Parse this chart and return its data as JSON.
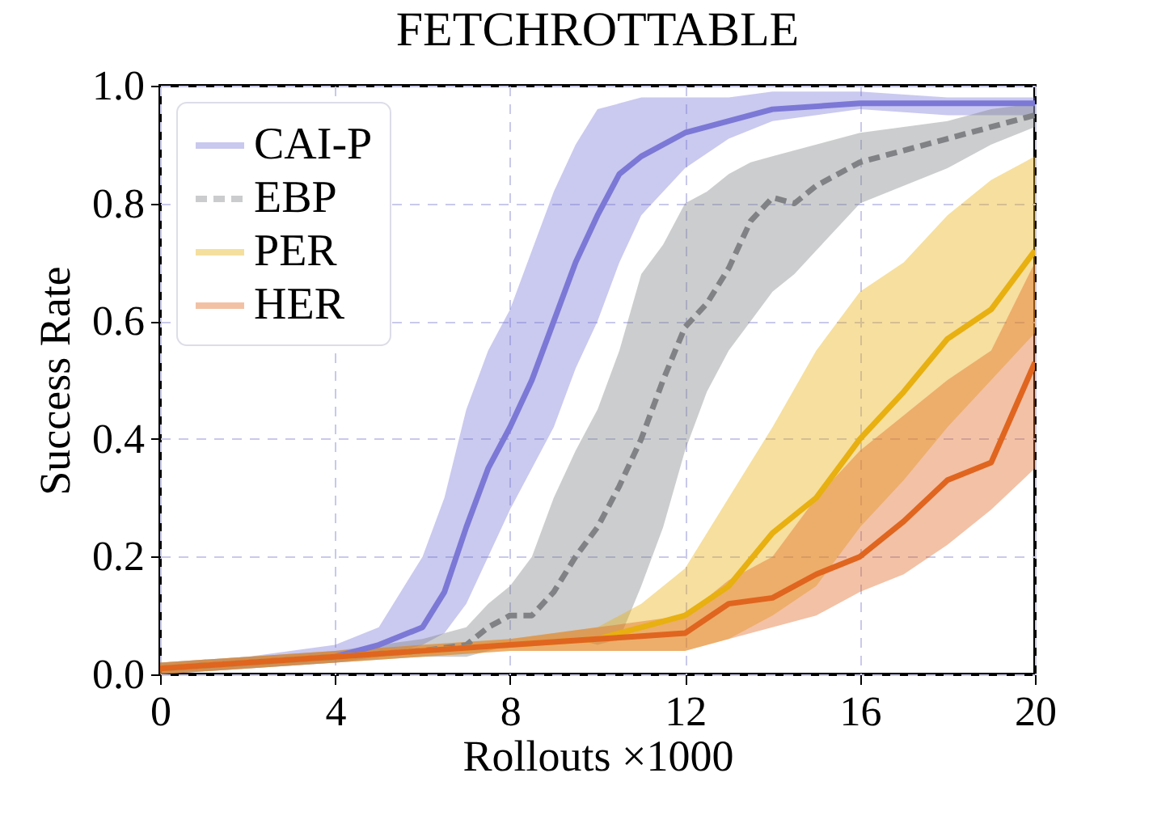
{
  "chart_data": {
    "type": "line",
    "title": "FETCHROTTABLE",
    "xlabel": "Rollouts ×1000",
    "ylabel": "Success Rate",
    "xlim": [
      0,
      20
    ],
    "xticks": [
      0,
      4,
      8,
      12,
      16,
      20
    ],
    "ylim": [
      0,
      1
    ],
    "yticks": [
      {
        "value": 0,
        "label": "0.0"
      },
      0.2,
      0.4,
      0.6,
      0.8,
      {
        "value": 1,
        "label": "1.0"
      }
    ],
    "grid": true,
    "legend": "top left",
    "series": [
      {
        "name": "CAI-P",
        "color": "#7b78d6",
        "line_style": "solid",
        "x": [
          0,
          2,
          4,
          5,
          6,
          6.5,
          7,
          7.5,
          8,
          8.5,
          9,
          9.5,
          10,
          10.5,
          11,
          12,
          13,
          14,
          16,
          18,
          20
        ],
        "values": [
          0.01,
          0.02,
          0.03,
          0.05,
          0.08,
          0.14,
          0.25,
          0.35,
          0.42,
          0.5,
          0.6,
          0.7,
          0.78,
          0.85,
          0.88,
          0.92,
          0.94,
          0.96,
          0.97,
          0.97,
          0.97
        ],
        "lower": [
          0,
          0.01,
          0.02,
          0.03,
          0.05,
          0.07,
          0.12,
          0.2,
          0.28,
          0.35,
          0.42,
          0.52,
          0.6,
          0.7,
          0.78,
          0.86,
          0.91,
          0.94,
          0.96,
          0.95,
          0.95
        ],
        "upper": [
          0.02,
          0.03,
          0.05,
          0.08,
          0.2,
          0.3,
          0.45,
          0.55,
          0.62,
          0.72,
          0.82,
          0.9,
          0.96,
          0.97,
          0.98,
          0.98,
          0.98,
          0.99,
          0.99,
          0.98,
          0.98
        ]
      },
      {
        "name": "EBP",
        "color": "#808285",
        "line_style": "dashed",
        "x": [
          0,
          2,
          4,
          6,
          7,
          7.5,
          8,
          8.5,
          9,
          9.5,
          10,
          10.5,
          11,
          11.5,
          12,
          12.5,
          13,
          13.5,
          14,
          14.5,
          15,
          16,
          17,
          18,
          19,
          20
        ],
        "values": [
          0.01,
          0.02,
          0.03,
          0.04,
          0.05,
          0.08,
          0.1,
          0.1,
          0.14,
          0.2,
          0.25,
          0.32,
          0.4,
          0.5,
          0.59,
          0.63,
          0.69,
          0.77,
          0.81,
          0.8,
          0.83,
          0.87,
          0.89,
          0.91,
          0.93,
          0.95
        ],
        "lower": [
          0,
          0.01,
          0.02,
          0.03,
          0.03,
          0.04,
          0.05,
          0.05,
          0.06,
          0.06,
          0.05,
          0.06,
          0.15,
          0.25,
          0.38,
          0.48,
          0.55,
          0.6,
          0.65,
          0.68,
          0.72,
          0.8,
          0.83,
          0.86,
          0.9,
          0.93
        ],
        "upper": [
          0.02,
          0.03,
          0.04,
          0.06,
          0.08,
          0.12,
          0.15,
          0.2,
          0.3,
          0.38,
          0.45,
          0.55,
          0.68,
          0.73,
          0.8,
          0.82,
          0.85,
          0.87,
          0.88,
          0.89,
          0.9,
          0.92,
          0.93,
          0.94,
          0.96,
          0.97
        ]
      },
      {
        "name": "PER",
        "color": "#e8b010",
        "line_style": "solid",
        "x": [
          0,
          2,
          4,
          6,
          8,
          10,
          11,
          12,
          13,
          14,
          15,
          16,
          17,
          18,
          19,
          20
        ],
        "values": [
          0.01,
          0.02,
          0.03,
          0.04,
          0.05,
          0.06,
          0.08,
          0.1,
          0.15,
          0.24,
          0.3,
          0.4,
          0.48,
          0.57,
          0.62,
          0.72
        ],
        "lower": [
          0,
          0.01,
          0.02,
          0.03,
          0.04,
          0.04,
          0.04,
          0.04,
          0.06,
          0.1,
          0.15,
          0.25,
          0.33,
          0.42,
          0.5,
          0.58
        ],
        "upper": [
          0.02,
          0.03,
          0.04,
          0.05,
          0.06,
          0.08,
          0.12,
          0.18,
          0.3,
          0.42,
          0.55,
          0.65,
          0.7,
          0.78,
          0.84,
          0.88
        ]
      },
      {
        "name": "HER",
        "color": "#e0651f",
        "line_style": "solid",
        "x": [
          0,
          2,
          4,
          6,
          8,
          10,
          11,
          12,
          13,
          14,
          15,
          16,
          17,
          18,
          19,
          20
        ],
        "values": [
          0.01,
          0.02,
          0.03,
          0.04,
          0.05,
          0.06,
          0.065,
          0.07,
          0.12,
          0.13,
          0.17,
          0.2,
          0.26,
          0.33,
          0.36,
          0.53
        ],
        "lower": [
          0,
          0.01,
          0.02,
          0.03,
          0.04,
          0.04,
          0.04,
          0.04,
          0.06,
          0.08,
          0.1,
          0.14,
          0.17,
          0.22,
          0.28,
          0.35
        ],
        "upper": [
          0.02,
          0.03,
          0.04,
          0.05,
          0.06,
          0.08,
          0.09,
          0.1,
          0.16,
          0.2,
          0.3,
          0.38,
          0.44,
          0.5,
          0.55,
          0.7
        ]
      }
    ]
  }
}
